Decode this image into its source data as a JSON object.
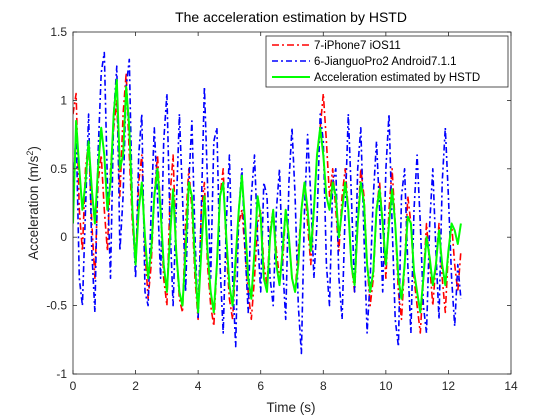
{
  "chart_data": {
    "type": "line",
    "title": "The acceleration estimation by HSTD",
    "xlabel": "Time (s)",
    "ylabel_main": "Acceleration (m/s",
    "ylabel_sup": "2",
    "ylabel_tail": ")",
    "xlim": [
      0,
      14
    ],
    "ylim": [
      -1,
      1.5
    ],
    "xticks": [
      0,
      2,
      4,
      6,
      8,
      10,
      12,
      14
    ],
    "xtick_labels": [
      "0",
      "2",
      "4",
      "6",
      "8",
      "10",
      "12",
      "14"
    ],
    "yticks": [
      -1,
      -0.5,
      0,
      0.5,
      1,
      1.5
    ],
    "ytick_labels": [
      "-1",
      "-0.5",
      "0",
      "0.5",
      "1",
      "1.5"
    ],
    "grid": false,
    "legend_position": "top-right",
    "series": [
      {
        "name": "7-iPhone7 iOS11",
        "color": "#ff0000",
        "dash": "dash-dot",
        "x": [
          0.0,
          0.1,
          0.2,
          0.3,
          0.4,
          0.5,
          0.6,
          0.7,
          0.8,
          0.9,
          1.0,
          1.1,
          1.2,
          1.3,
          1.4,
          1.5,
          1.6,
          1.7,
          1.8,
          1.9,
          2.0,
          2.1,
          2.2,
          2.3,
          2.4,
          2.5,
          2.6,
          2.7,
          2.8,
          2.9,
          3.0,
          3.1,
          3.2,
          3.3,
          3.4,
          3.5,
          3.6,
          3.7,
          3.8,
          3.9,
          4.0,
          4.1,
          4.2,
          4.3,
          4.4,
          4.5,
          4.6,
          4.7,
          4.8,
          4.9,
          5.0,
          5.1,
          5.2,
          5.3,
          5.4,
          5.5,
          5.6,
          5.7,
          5.8,
          5.9,
          6.0,
          6.1,
          6.2,
          6.3,
          6.4,
          6.5,
          6.6,
          6.7,
          6.8,
          6.9,
          7.0,
          7.1,
          7.2,
          7.3,
          7.4,
          7.5,
          7.6,
          7.7,
          7.8,
          7.9,
          8.0,
          8.1,
          8.2,
          8.3,
          8.4,
          8.5,
          8.6,
          8.7,
          8.8,
          8.9,
          9.0,
          9.1,
          9.2,
          9.3,
          9.4,
          9.5,
          9.6,
          9.7,
          9.8,
          9.9,
          10.0,
          10.1,
          10.2,
          10.3,
          10.4,
          10.5,
          10.6,
          10.7,
          10.8,
          10.9,
          11.0,
          11.1,
          11.2,
          11.3,
          11.4,
          11.5,
          11.6,
          11.7,
          11.8,
          11.9,
          12.0,
          12.1,
          12.2,
          12.3,
          12.4
        ],
        "y": [
          0.9,
          1.05,
          0.2,
          -0.1,
          0.5,
          0.7,
          0.1,
          -0.3,
          0.4,
          0.6,
          0.2,
          -0.1,
          0.5,
          0.8,
          1.0,
          0.3,
          0.9,
          1.2,
          0.6,
          0.1,
          -0.2,
          0.4,
          0.6,
          -0.1,
          -0.45,
          -0.2,
          0.3,
          0.6,
          0.2,
          -0.3,
          -0.5,
          0.3,
          0.6,
          -0.1,
          -0.45,
          -0.55,
          0.1,
          0.5,
          0.2,
          -0.3,
          -0.6,
          0.2,
          0.4,
          -0.2,
          -0.5,
          -0.65,
          -0.2,
          0.3,
          0.5,
          -0.1,
          -0.45,
          -0.6,
          -0.2,
          0.1,
          0.2,
          -0.1,
          -0.4,
          -0.6,
          -0.3,
          0.1,
          0.2,
          -0.2,
          -0.35,
          0.05,
          0.2,
          -0.1,
          -0.3,
          -0.2,
          0.2,
          0.0,
          -0.3,
          -0.4,
          -0.1,
          0.2,
          0.4,
          0.1,
          -0.2,
          0.2,
          0.6,
          0.8,
          1.05,
          0.7,
          0.3,
          0.5,
          0.2,
          -0.1,
          0.3,
          0.5,
          0.2,
          -0.2,
          -0.4,
          0.1,
          0.5,
          0.3,
          -0.2,
          -0.5,
          -0.3,
          0.2,
          0.4,
          0.1,
          -0.3,
          0.2,
          0.5,
          0.1,
          -0.4,
          -0.6,
          -0.2,
          0.3,
          0.1,
          -0.3,
          -0.5,
          -0.7,
          -0.3,
          0.1,
          -0.2,
          -0.5,
          -0.2,
          0.1,
          -0.3,
          -0.55,
          -0.1,
          0.1,
          -0.2,
          -0.4,
          -0.1
        ]
      },
      {
        "name": "6-JianguoPro2 Android7.1.1",
        "color": "#0000ff",
        "dash": "dash-dot-strong",
        "x": [
          0.0,
          0.1,
          0.2,
          0.3,
          0.4,
          0.5,
          0.6,
          0.7,
          0.8,
          0.9,
          1.0,
          1.1,
          1.2,
          1.3,
          1.4,
          1.5,
          1.6,
          1.7,
          1.8,
          1.9,
          2.0,
          2.1,
          2.2,
          2.3,
          2.4,
          2.5,
          2.6,
          2.7,
          2.8,
          2.9,
          3.0,
          3.1,
          3.2,
          3.3,
          3.4,
          3.5,
          3.6,
          3.7,
          3.8,
          3.9,
          4.0,
          4.1,
          4.2,
          4.3,
          4.4,
          4.5,
          4.6,
          4.7,
          4.8,
          4.9,
          5.0,
          5.1,
          5.2,
          5.3,
          5.4,
          5.5,
          5.6,
          5.7,
          5.8,
          5.9,
          6.0,
          6.1,
          6.2,
          6.3,
          6.4,
          6.5,
          6.6,
          6.7,
          6.8,
          6.9,
          7.0,
          7.1,
          7.2,
          7.3,
          7.4,
          7.5,
          7.6,
          7.7,
          7.8,
          7.9,
          8.0,
          8.1,
          8.2,
          8.3,
          8.4,
          8.5,
          8.6,
          8.7,
          8.8,
          8.9,
          9.0,
          9.1,
          9.2,
          9.3,
          9.4,
          9.5,
          9.6,
          9.7,
          9.8,
          9.9,
          10.0,
          10.1,
          10.2,
          10.3,
          10.4,
          10.5,
          10.6,
          10.7,
          10.8,
          10.9,
          11.0,
          11.1,
          11.2,
          11.3,
          11.4,
          11.5,
          11.6,
          11.7,
          11.8,
          11.9,
          12.0,
          12.1,
          12.2,
          12.3,
          12.4
        ],
        "y": [
          0.3,
          0.8,
          -0.3,
          -0.5,
          0.2,
          0.9,
          -0.1,
          -0.55,
          0.6,
          1.2,
          1.35,
          0.4,
          -0.3,
          0.9,
          1.25,
          -0.1,
          0.3,
          1.1,
          1.3,
          0.2,
          -0.3,
          0.6,
          0.9,
          -0.4,
          -0.5,
          0.2,
          0.8,
          0.3,
          -0.3,
          0.7,
          1.05,
          0.1,
          -0.5,
          0.2,
          0.9,
          0.3,
          -0.4,
          0.4,
          0.85,
          0.0,
          -0.6,
          0.2,
          1.1,
          0.4,
          -0.3,
          0.7,
          0.8,
          -0.2,
          -0.7,
          0.1,
          0.6,
          -0.3,
          -0.8,
          0.2,
          0.5,
          -0.1,
          -0.55,
          0.3,
          0.6,
          0.0,
          -0.4,
          0.4,
          0.3,
          -0.3,
          -0.5,
          0.2,
          0.5,
          -0.2,
          -0.6,
          0.4,
          0.8,
          0.3,
          -0.5,
          -0.85,
          0.2,
          0.75,
          0.3,
          -0.3,
          0.1,
          0.9,
          0.7,
          -0.2,
          -0.5,
          0.4,
          0.5,
          -0.3,
          -0.6,
          0.2,
          0.9,
          0.3,
          -0.4,
          0.5,
          0.8,
          0.0,
          -0.7,
          -0.3,
          0.3,
          0.7,
          0.2,
          -0.4,
          0.5,
          0.9,
          0.1,
          -0.6,
          -0.8,
          0.3,
          0.5,
          -0.2,
          -0.7,
          0.2,
          0.6,
          0.1,
          -0.5,
          -0.7,
          0.1,
          0.5,
          -0.1,
          -0.6,
          0.4,
          0.8,
          0.3,
          -0.3,
          -0.65,
          -0.2,
          -0.45
        ]
      },
      {
        "name": "Acceleration estimated by HSTD",
        "color": "#00ff00",
        "dash": "solid",
        "x": [
          0.0,
          0.1,
          0.2,
          0.3,
          0.4,
          0.5,
          0.6,
          0.7,
          0.8,
          0.9,
          1.0,
          1.1,
          1.2,
          1.3,
          1.4,
          1.5,
          1.6,
          1.7,
          1.8,
          1.9,
          2.0,
          2.1,
          2.2,
          2.3,
          2.4,
          2.5,
          2.6,
          2.7,
          2.8,
          2.9,
          3.0,
          3.1,
          3.2,
          3.3,
          3.4,
          3.5,
          3.6,
          3.7,
          3.8,
          3.9,
          4.0,
          4.1,
          4.2,
          4.3,
          4.4,
          4.5,
          4.6,
          4.7,
          4.8,
          4.9,
          5.0,
          5.1,
          5.2,
          5.3,
          5.4,
          5.5,
          5.6,
          5.7,
          5.8,
          5.9,
          6.0,
          6.1,
          6.2,
          6.3,
          6.4,
          6.5,
          6.6,
          6.7,
          6.8,
          6.9,
          7.0,
          7.1,
          7.2,
          7.3,
          7.4,
          7.5,
          7.6,
          7.7,
          7.8,
          7.9,
          8.0,
          8.1,
          8.2,
          8.3,
          8.4,
          8.5,
          8.6,
          8.7,
          8.8,
          8.9,
          9.0,
          9.1,
          9.2,
          9.3,
          9.4,
          9.5,
          9.6,
          9.7,
          9.8,
          9.9,
          10.0,
          10.1,
          10.2,
          10.3,
          10.4,
          10.5,
          10.6,
          10.7,
          10.8,
          10.9,
          11.0,
          11.1,
          11.2,
          11.3,
          11.4,
          11.5,
          11.6,
          11.7,
          11.8,
          11.9,
          12.0,
          12.1,
          12.2,
          12.3,
          12.4
        ],
        "y": [
          0.1,
          0.85,
          0.5,
          0.2,
          0.4,
          0.7,
          0.35,
          0.1,
          0.5,
          0.8,
          0.6,
          0.2,
          0.4,
          0.9,
          1.15,
          0.5,
          0.6,
          1.1,
          0.8,
          0.2,
          -0.2,
          0.2,
          0.4,
          0.0,
          -0.3,
          -0.1,
          0.3,
          0.5,
          0.2,
          -0.2,
          -0.4,
          0.0,
          0.35,
          -0.1,
          -0.4,
          -0.5,
          -0.1,
          0.4,
          0.3,
          -0.2,
          -0.55,
          -0.1,
          0.3,
          -0.1,
          -0.4,
          -0.55,
          -0.2,
          0.3,
          0.4,
          0.0,
          -0.35,
          -0.5,
          -0.15,
          0.2,
          0.45,
          0.1,
          -0.3,
          -0.45,
          -0.1,
          0.3,
          0.15,
          -0.3,
          -0.4,
          0.0,
          0.2,
          -0.2,
          -0.35,
          -0.1,
          0.2,
          0.0,
          -0.3,
          -0.4,
          -0.2,
          0.2,
          0.4,
          0.2,
          -0.1,
          0.2,
          0.6,
          0.8,
          0.6,
          0.3,
          0.2,
          0.4,
          0.3,
          0.0,
          0.2,
          0.4,
          0.2,
          -0.2,
          -0.35,
          0.1,
          0.4,
          0.25,
          -0.2,
          -0.4,
          -0.25,
          0.2,
          0.35,
          0.1,
          -0.2,
          0.1,
          0.35,
          0.1,
          -0.3,
          -0.45,
          -0.2,
          0.15,
          0.1,
          -0.25,
          -0.4,
          -0.55,
          -0.3,
          0.0,
          -0.15,
          -0.35,
          -0.2,
          0.05,
          -0.2,
          -0.35,
          -0.1,
          0.1,
          0.05,
          -0.05,
          0.1
        ]
      }
    ]
  }
}
